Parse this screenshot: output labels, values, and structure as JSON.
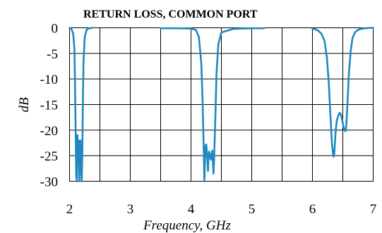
{
  "chart_data": {
    "type": "line",
    "title": "RETURN LOSS, COMMON PORT",
    "xlabel": "Frequency, GHz",
    "ylabel": "dB",
    "xlim": [
      2,
      7
    ],
    "ylim": [
      -30,
      0
    ],
    "x_ticks": [
      2,
      3,
      4,
      5,
      6,
      7
    ],
    "y_ticks": [
      0,
      -5,
      -10,
      -15,
      -20,
      -25,
      -30
    ],
    "x_tick_labels": [
      "2",
      "3",
      "4",
      "5",
      "6",
      "7"
    ],
    "y_tick_labels": [
      "0",
      "-5",
      "-10",
      "-15",
      "-20",
      "-25",
      "-30"
    ],
    "x_grid": [
      2.5,
      3.5,
      4.5,
      5.5,
      6.5
    ],
    "grid": true,
    "series_color": "#1f88bf",
    "series": [
      {
        "x": [
          2.0,
          2.03,
          2.06,
          2.08,
          2.09,
          2.1,
          2.11,
          2.12,
          2.13,
          2.14,
          2.15,
          2.16,
          2.17,
          2.18,
          2.19,
          2.2,
          2.21,
          2.22,
          2.23,
          2.25,
          2.28,
          2.32,
          2.38
        ],
        "y": [
          0,
          -0.2,
          -1.2,
          -4.0,
          -11.0,
          -20.0,
          -29.0,
          -30.0,
          -21.0,
          -26.0,
          -22.0,
          -30.0,
          -26.0,
          -22.0,
          -27.0,
          -30.0,
          -25.0,
          -14.0,
          -6.5,
          -1.8,
          -0.4,
          -0.1,
          0
        ]
      },
      {
        "x": [
          3.5,
          3.8,
          4.0,
          4.08,
          4.13,
          4.17,
          4.19,
          4.21,
          4.22,
          4.23,
          4.24,
          4.25,
          4.26,
          4.27,
          4.28,
          4.29,
          4.3,
          4.31,
          4.32,
          4.33,
          4.34,
          4.35,
          4.36,
          4.37,
          4.38,
          4.4,
          4.42,
          4.45,
          4.5,
          4.7,
          5.0,
          5.2
        ],
        "y": [
          -0.1,
          -0.1,
          -0.15,
          -0.4,
          -1.8,
          -7.0,
          -14.0,
          -24.0,
          -30.0,
          -26.0,
          -23.0,
          -22.8,
          -24.0,
          -26.0,
          -28.0,
          -25.0,
          -24.2,
          -24.8,
          -25.4,
          -25.8,
          -24.8,
          -24.0,
          -26.0,
          -28.5,
          -26.0,
          -18.0,
          -9.0,
          -3.2,
          -0.9,
          -0.2,
          -0.1,
          -0.1
        ]
      },
      {
        "x": [
          6.0,
          6.05,
          6.1,
          6.15,
          6.2,
          6.24,
          6.27,
          6.3,
          6.32,
          6.34,
          6.35,
          6.36,
          6.38,
          6.4,
          6.43,
          6.45,
          6.47,
          6.49,
          6.51,
          6.53,
          6.54,
          6.55,
          6.56,
          6.58,
          6.6,
          6.63,
          6.66,
          6.7,
          6.75,
          6.8,
          6.9,
          7.0
        ],
        "y": [
          -0.2,
          -0.3,
          -0.6,
          -1.2,
          -2.6,
          -6.0,
          -11.0,
          -18.0,
          -22.5,
          -24.8,
          -25.2,
          -24.5,
          -20.5,
          -18.2,
          -17.0,
          -16.6,
          -17.0,
          -18.0,
          -19.3,
          -20.0,
          -20.2,
          -20.0,
          -18.5,
          -14.0,
          -9.0,
          -4.5,
          -2.0,
          -0.9,
          -0.4,
          -0.2,
          -0.05,
          0
        ]
      }
    ]
  }
}
